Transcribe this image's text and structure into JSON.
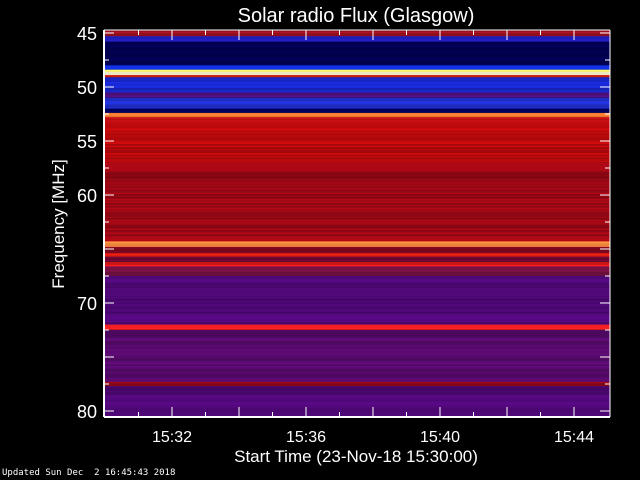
{
  "chart_data": {
    "type": "heatmap",
    "title": "Solar radio Flux (Glasgow)",
    "xlabel": "Start Time (23-Nov-18 15:30:00)",
    "ylabel": "Frequency [MHz]",
    "x_range": [
      "15:30",
      "15:45"
    ],
    "x_ticks": [
      "15:32",
      "15:36",
      "15:40",
      "15:44"
    ],
    "ylim": [
      45,
      80
    ],
    "y_inverted": true,
    "y_ticks": [
      45,
      50,
      55,
      60,
      70,
      80
    ],
    "colormap": "blue-red-yellow-white",
    "bands_mhz": [
      {
        "from": 45.0,
        "to": 45.3,
        "color": "#a01020"
      },
      {
        "from": 45.3,
        "to": 45.8,
        "color": "#2020c0"
      },
      {
        "from": 45.8,
        "to": 48.0,
        "color": "#000050"
      },
      {
        "from": 48.0,
        "to": 48.4,
        "color": "#1030e0"
      },
      {
        "from": 48.4,
        "to": 48.6,
        "color": "#ffe060"
      },
      {
        "from": 48.6,
        "to": 48.9,
        "color": "#fff8d0"
      },
      {
        "from": 48.9,
        "to": 49.1,
        "color": "#e02010"
      },
      {
        "from": 49.1,
        "to": 50.5,
        "color": "#1828d0"
      },
      {
        "from": 50.5,
        "to": 51.0,
        "color": "#501080"
      },
      {
        "from": 51.0,
        "to": 52.0,
        "color": "#2030d0"
      },
      {
        "from": 52.0,
        "to": 52.4,
        "color": "#000060"
      },
      {
        "from": 52.4,
        "to": 52.8,
        "color": "#ff8030"
      },
      {
        "from": 52.8,
        "to": 53.2,
        "color": "#c01010"
      },
      {
        "from": 53.2,
        "to": 57.0,
        "color": "#c00a0a"
      },
      {
        "from": 57.0,
        "to": 64.3,
        "color": "#a00812"
      },
      {
        "from": 64.3,
        "to": 64.8,
        "color": "#ff9040"
      },
      {
        "from": 64.8,
        "to": 65.4,
        "color": "#800820"
      },
      {
        "from": 65.4,
        "to": 65.7,
        "color": "#f02010"
      },
      {
        "from": 65.7,
        "to": 66.2,
        "color": "#700830"
      },
      {
        "from": 66.2,
        "to": 66.6,
        "color": "#e01818"
      },
      {
        "from": 66.6,
        "to": 67.5,
        "color": "#701040"
      },
      {
        "from": 67.5,
        "to": 72.0,
        "color": "#500878"
      },
      {
        "from": 72.0,
        "to": 72.5,
        "color": "#f02020"
      },
      {
        "from": 72.5,
        "to": 77.3,
        "color": "#5a0a70"
      },
      {
        "from": 77.3,
        "to": 77.7,
        "color": "#900818"
      },
      {
        "from": 77.7,
        "to": 80.0,
        "color": "#500878"
      }
    ]
  },
  "footer": {
    "updated": "Updated Sun Dec  2 16:45:43 2018"
  }
}
